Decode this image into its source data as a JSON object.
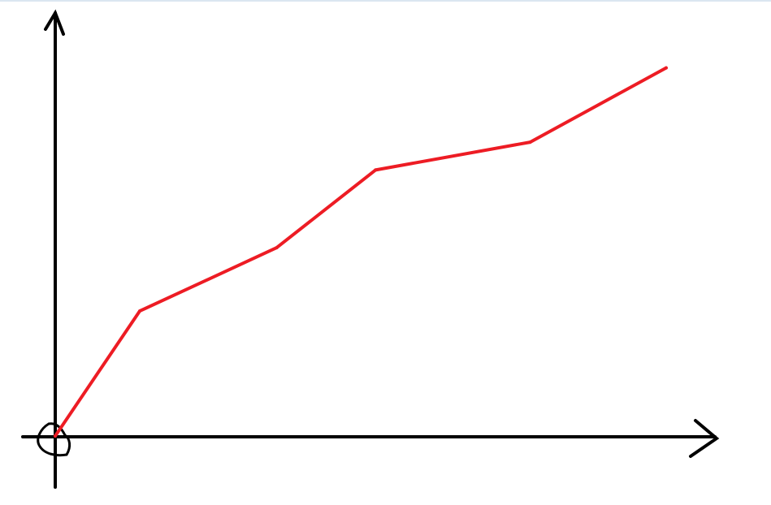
{
  "chart_data": {
    "type": "line",
    "title": "",
    "xlabel": "",
    "ylabel": "",
    "grid": false,
    "axes_style": "hand-drawn arrows",
    "series": [
      {
        "color": "#ed1c24",
        "x": [
          0,
          1.0,
          2.62,
          3.79,
          5.62,
          7.23
        ],
        "y": [
          0,
          1.48,
          2.23,
          3.15,
          3.48,
          4.36
        ]
      }
    ],
    "axis_color": "#000000"
  }
}
